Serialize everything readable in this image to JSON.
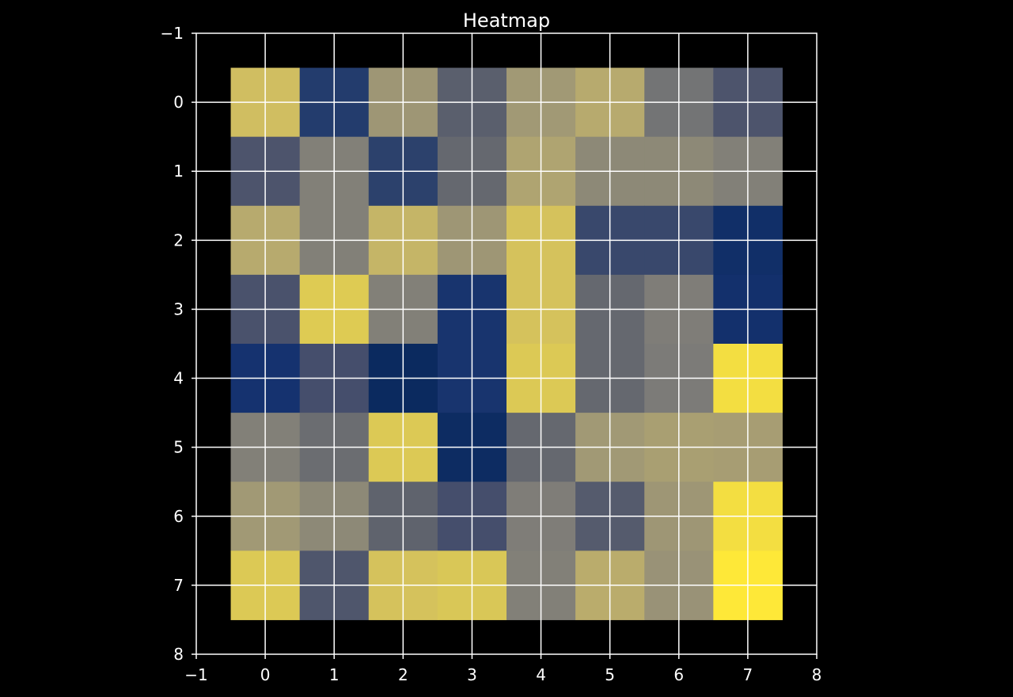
{
  "chart_data": {
    "type": "heatmap",
    "title": "Heatmap",
    "xlabel": "",
    "ylabel": "",
    "xlim": [
      -1,
      8
    ],
    "ylim": [
      8,
      -1
    ],
    "y_inverted": true,
    "grid": true,
    "colormap": "cividis",
    "vmin": 0.0,
    "vmax": 1.0,
    "xticks": [
      "−1",
      "0",
      "1",
      "2",
      "3",
      "4",
      "5",
      "6",
      "7",
      "8"
    ],
    "yticks": [
      "−1",
      "0",
      "1",
      "2",
      "3",
      "4",
      "5",
      "6",
      "7",
      "8"
    ],
    "values": [
      [
        0.8,
        0.18,
        0.62,
        0.38,
        0.63,
        0.71,
        0.47,
        0.33
      ],
      [
        0.33,
        0.52,
        0.22,
        0.42,
        0.68,
        0.56,
        0.56,
        0.52
      ],
      [
        0.71,
        0.52,
        0.76,
        0.62,
        0.82,
        0.26,
        0.26,
        0.08
      ],
      [
        0.32,
        0.86,
        0.52,
        0.12,
        0.82,
        0.42,
        0.51,
        0.09
      ],
      [
        0.1,
        0.3,
        0.05,
        0.12,
        0.85,
        0.42,
        0.5,
        0.95
      ],
      [
        0.52,
        0.44,
        0.85,
        0.06,
        0.42,
        0.63,
        0.66,
        0.65
      ],
      [
        0.63,
        0.56,
        0.4,
        0.3,
        0.51,
        0.36,
        0.62,
        0.95
      ],
      [
        0.85,
        0.34,
        0.82,
        0.84,
        0.52,
        0.72,
        0.6,
        1.0
      ]
    ]
  }
}
